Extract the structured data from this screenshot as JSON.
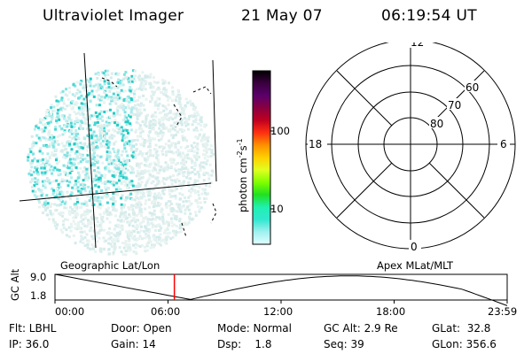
{
  "header": {
    "title": "Ultraviolet Imager",
    "date": "21 May 07",
    "time": "06:19:54 UT"
  },
  "colorbar": {
    "label_prefix": "photon cm",
    "label_exp1": "-2",
    "label_mid": "s",
    "label_exp2": "-1",
    "ticks": [
      "100",
      "10"
    ],
    "colors": [
      "#000000",
      "#3a0040",
      "#5a006a",
      "#8a0040",
      "#c00020",
      "#ff3010",
      "#ff9000",
      "#ffd000",
      "#e0ff20",
      "#80ff00",
      "#20e020",
      "#20f0b0",
      "#30e8d0",
      "#a0f0f0",
      "#e0ffff"
    ]
  },
  "dial": {
    "mlt_labels": {
      "top": "12",
      "right": "6",
      "bottom": "0",
      "left": "18"
    },
    "lat_labels": [
      "60",
      "70",
      "80"
    ]
  },
  "timeline": {
    "left_title": "Geographic Lat/Lon",
    "right_title": "Apex MLat/MLT",
    "axis_label": "GC Alt",
    "y_ticks": [
      "9.0",
      "1.8"
    ],
    "x_ticks": [
      "00:00",
      "06:00",
      "12:00",
      "18:00",
      "23:59"
    ],
    "current_fraction": 0.264,
    "marker_color": "#ff0000"
  },
  "status": {
    "row1": {
      "flt": "Flt: LBHL",
      "door": "Door: Open",
      "mode": "Mode: Normal",
      "gcalt": "GC Alt: 2.9 Re",
      "glat": "GLat:  32.8"
    },
    "row2": {
      "ip": "IP: 36.0",
      "gain": "Gain: 14",
      "dsp": "Dsp:    1.8",
      "seq": "Seq: 39",
      "glon": "GLon: 356.6"
    }
  }
}
